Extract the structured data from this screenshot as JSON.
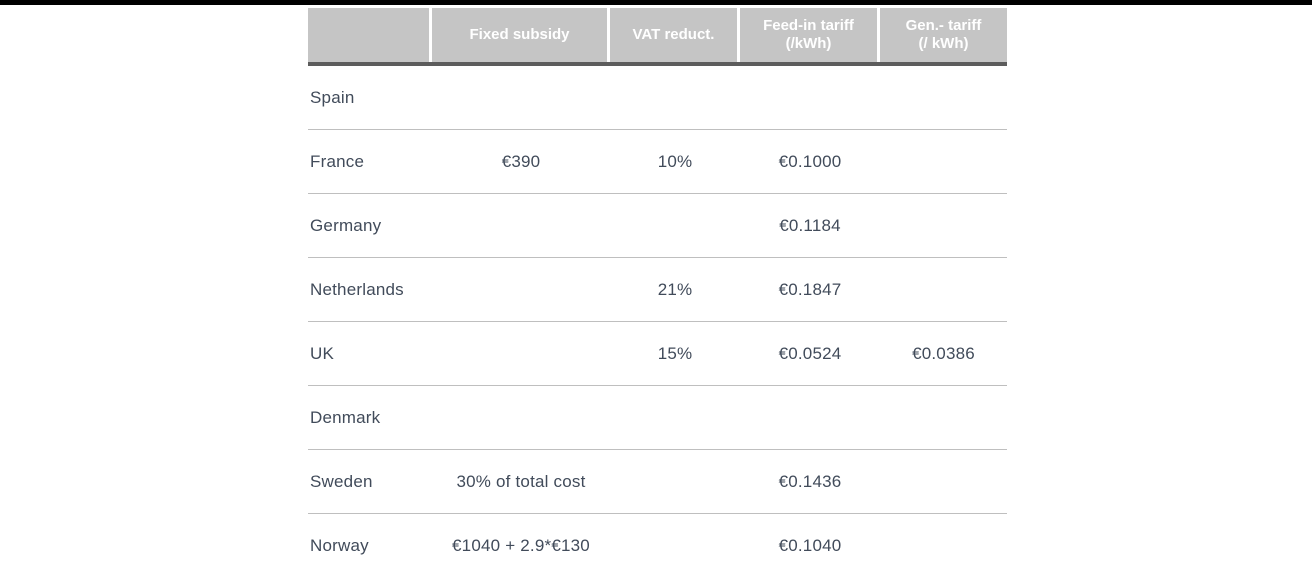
{
  "page": {
    "top_bar_color": "#000000",
    "background": "#ffffff"
  },
  "table": {
    "header": {
      "columns": [
        "",
        "Fixed subsidy",
        "VAT reduct.",
        "Feed-in tariff\n(/kWh)",
        "Gen.- tariff\n(/ kWh)"
      ]
    },
    "rows": [
      {
        "country": "Spain",
        "fixed_subsidy": "",
        "vat_reduction": "",
        "feed_in_tariff": "",
        "gen_tariff": ""
      },
      {
        "country": "France",
        "fixed_subsidy": "€390",
        "vat_reduction": "10%",
        "feed_in_tariff": "€0.1000",
        "gen_tariff": ""
      },
      {
        "country": "Germany",
        "fixed_subsidy": "",
        "vat_reduction": "",
        "feed_in_tariff": "€0.1184",
        "gen_tariff": ""
      },
      {
        "country": "Netherlands",
        "fixed_subsidy": "",
        "vat_reduction": "21%",
        "feed_in_tariff": "€0.1847",
        "gen_tariff": ""
      },
      {
        "country": "UK",
        "fixed_subsidy": "",
        "vat_reduction": "15%",
        "feed_in_tariff": "€0.0524",
        "gen_tariff": "€0.0386"
      },
      {
        "country": "Denmark",
        "fixed_subsidy": "",
        "vat_reduction": "",
        "feed_in_tariff": "",
        "gen_tariff": ""
      },
      {
        "country": "Sweden",
        "fixed_subsidy": "30% of total cost",
        "vat_reduction": "",
        "feed_in_tariff": "€0.1436",
        "gen_tariff": ""
      },
      {
        "country": "Norway",
        "fixed_subsidy": "€1040 + 2.9*€130",
        "vat_reduction": "",
        "feed_in_tariff": "€0.1040",
        "gen_tariff": ""
      }
    ],
    "colors": {
      "header_bg": "#c5c5c5",
      "header_text": "#ffffff",
      "header_rule": "#5c5c5c",
      "row_separator": "#bfbfbf",
      "body_text": "#414b5a"
    }
  }
}
